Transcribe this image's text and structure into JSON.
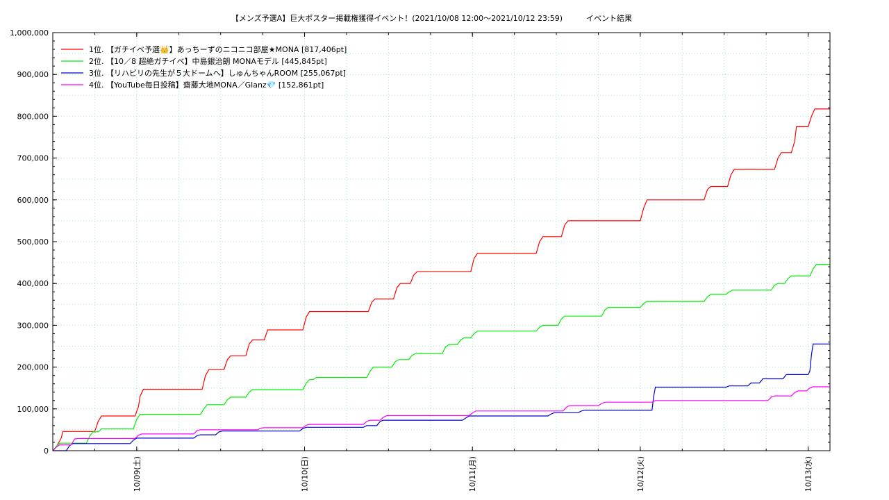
{
  "chart_data": {
    "type": "line",
    "title": "【メンズ予選A】巨大ポスター掲載権獲得イベント！(2021/10/08 12:00〜2021/10/12 23:59)",
    "subtitle": "イベント結果",
    "xlabel": "",
    "ylabel": "",
    "x_unit": "days_from_2021-10-08T00:00",
    "xlim": [
      0.5,
      5.13
    ],
    "ylim": [
      0,
      1000000
    ],
    "y_ticks": [
      0,
      100000,
      200000,
      300000,
      400000,
      500000,
      600000,
      700000,
      800000,
      900000,
      1000000
    ],
    "y_tick_labels": [
      "0",
      "100,000",
      "200,000",
      "300,000",
      "400,000",
      "500,000",
      "600,000",
      "700,000",
      "800,000",
      "900,000",
      "1,000,000"
    ],
    "x_ticks": [
      1,
      2,
      3,
      4,
      5
    ],
    "x_tick_labels": [
      "10/09(土)",
      "10/10(日)",
      "10/11(月)",
      "10/12(火)",
      "10/13(水)"
    ],
    "grid": true,
    "legend_position": "top-left",
    "series": [
      {
        "name": "1位. 【ガチイベ予選👑】あっちーずのニコニコ部屋★MONA [817,406pt]",
        "color": "#ff0000",
        "points": [
          [
            0.5,
            0
          ],
          [
            0.52,
            8000
          ],
          [
            0.53,
            16000
          ],
          [
            0.55,
            30000
          ],
          [
            0.56,
            46000
          ],
          [
            0.75,
            46000
          ],
          [
            0.77,
            70000
          ],
          [
            0.79,
            83000
          ],
          [
            0.99,
            83000
          ],
          [
            1.01,
            105000
          ],
          [
            1.02,
            130000
          ],
          [
            1.04,
            147000
          ],
          [
            1.39,
            147000
          ],
          [
            1.41,
            180000
          ],
          [
            1.43,
            194000
          ],
          [
            1.52,
            194000
          ],
          [
            1.54,
            218000
          ],
          [
            1.56,
            227000
          ],
          [
            1.65,
            227000
          ],
          [
            1.67,
            255000
          ],
          [
            1.69,
            265000
          ],
          [
            1.76,
            265000
          ],
          [
            1.78,
            289000
          ],
          [
            1.99,
            289000
          ],
          [
            2.01,
            320000
          ],
          [
            2.03,
            333000
          ],
          [
            2.38,
            333000
          ],
          [
            2.4,
            355000
          ],
          [
            2.42,
            363000
          ],
          [
            2.53,
            363000
          ],
          [
            2.55,
            390000
          ],
          [
            2.57,
            400000
          ],
          [
            2.63,
            400000
          ],
          [
            2.65,
            420000
          ],
          [
            2.67,
            428000
          ],
          [
            2.99,
            428000
          ],
          [
            3.01,
            460000
          ],
          [
            3.03,
            472000
          ],
          [
            3.38,
            472000
          ],
          [
            3.4,
            500000
          ],
          [
            3.42,
            512000
          ],
          [
            3.53,
            512000
          ],
          [
            3.55,
            540000
          ],
          [
            3.57,
            550000
          ],
          [
            4.0,
            550000
          ],
          [
            4.02,
            580000
          ],
          [
            4.04,
            600000
          ],
          [
            4.38,
            600000
          ],
          [
            4.4,
            625000
          ],
          [
            4.42,
            632000
          ],
          [
            4.52,
            632000
          ],
          [
            4.54,
            660000
          ],
          [
            4.56,
            673000
          ],
          [
            4.8,
            673000
          ],
          [
            4.82,
            700000
          ],
          [
            4.84,
            713000
          ],
          [
            4.9,
            713000
          ],
          [
            4.92,
            740000
          ],
          [
            4.93,
            775000
          ],
          [
            5.0,
            775000
          ],
          [
            5.02,
            800000
          ],
          [
            5.04,
            817406
          ],
          [
            5.13,
            817406
          ]
        ]
      },
      {
        "name": "2位. 【10／8 超絶ガチイベ】中島銀治朗 MONAモデル [445,845pt]",
        "color": "#00ee00",
        "points": [
          [
            0.5,
            0
          ],
          [
            0.52,
            10000
          ],
          [
            0.54,
            18000
          ],
          [
            0.7,
            18000
          ],
          [
            0.72,
            35000
          ],
          [
            0.74,
            45000
          ],
          [
            0.77,
            45000
          ],
          [
            0.79,
            52000
          ],
          [
            0.98,
            52000
          ],
          [
            1.0,
            75000
          ],
          [
            1.02,
            87000
          ],
          [
            1.38,
            87000
          ],
          [
            1.4,
            100000
          ],
          [
            1.42,
            110000
          ],
          [
            1.52,
            110000
          ],
          [
            1.54,
            122000
          ],
          [
            1.56,
            128000
          ],
          [
            1.65,
            128000
          ],
          [
            1.67,
            140000
          ],
          [
            1.69,
            146000
          ],
          [
            1.99,
            146000
          ],
          [
            2.01,
            162000
          ],
          [
            2.03,
            170000
          ],
          [
            2.05,
            170000
          ],
          [
            2.07,
            175000
          ],
          [
            2.37,
            175000
          ],
          [
            2.39,
            190000
          ],
          [
            2.41,
            200000
          ],
          [
            2.52,
            200000
          ],
          [
            2.54,
            213000
          ],
          [
            2.56,
            218000
          ],
          [
            2.62,
            218000
          ],
          [
            2.64,
            228000
          ],
          [
            2.66,
            232000
          ],
          [
            2.82,
            232000
          ],
          [
            2.84,
            248000
          ],
          [
            2.86,
            254000
          ],
          [
            2.91,
            254000
          ],
          [
            2.93,
            265000
          ],
          [
            2.95,
            270000
          ],
          [
            2.99,
            270000
          ],
          [
            3.01,
            280000
          ],
          [
            3.03,
            286000
          ],
          [
            3.38,
            286000
          ],
          [
            3.4,
            295000
          ],
          [
            3.42,
            300000
          ],
          [
            3.51,
            300000
          ],
          [
            3.53,
            315000
          ],
          [
            3.55,
            322000
          ],
          [
            3.77,
            322000
          ],
          [
            3.79,
            337000
          ],
          [
            3.81,
            343000
          ],
          [
            4.0,
            343000
          ],
          [
            4.02,
            352000
          ],
          [
            4.04,
            357000
          ],
          [
            4.38,
            357000
          ],
          [
            4.4,
            368000
          ],
          [
            4.42,
            374000
          ],
          [
            4.51,
            374000
          ],
          [
            4.53,
            380000
          ],
          [
            4.55,
            384000
          ],
          [
            4.78,
            384000
          ],
          [
            4.8,
            396000
          ],
          [
            4.82,
            400000
          ],
          [
            4.86,
            400000
          ],
          [
            4.88,
            412000
          ],
          [
            4.9,
            418000
          ],
          [
            5.01,
            418000
          ],
          [
            5.03,
            435000
          ],
          [
            5.05,
            445845
          ],
          [
            5.13,
            445845
          ]
        ]
      },
      {
        "name": "3位. 【リハビリの先生が５大ドームへ】しゅんちゃんROOM [255,067pt]",
        "color": "#0000cc",
        "points": [
          [
            0.5,
            0
          ],
          [
            0.58,
            0
          ],
          [
            0.6,
            12000
          ],
          [
            0.62,
            17000
          ],
          [
            0.96,
            17000
          ],
          [
            0.98,
            25000
          ],
          [
            1.0,
            30000
          ],
          [
            1.34,
            30000
          ],
          [
            1.36,
            36000
          ],
          [
            1.38,
            38000
          ],
          [
            1.47,
            38000
          ],
          [
            1.49,
            45000
          ],
          [
            1.51,
            47000
          ],
          [
            1.97,
            47000
          ],
          [
            1.99,
            53000
          ],
          [
            2.01,
            56000
          ],
          [
            2.35,
            56000
          ],
          [
            2.37,
            60000
          ],
          [
            2.43,
            60000
          ],
          [
            2.45,
            70000
          ],
          [
            2.47,
            73000
          ],
          [
            2.94,
            73000
          ],
          [
            2.96,
            78000
          ],
          [
            2.98,
            83000
          ],
          [
            3.45,
            83000
          ],
          [
            3.47,
            88000
          ],
          [
            3.49,
            91000
          ],
          [
            3.63,
            91000
          ],
          [
            3.65,
            95000
          ],
          [
            3.67,
            97000
          ],
          [
            4.07,
            97000
          ],
          [
            4.08,
            130000
          ],
          [
            4.09,
            152000
          ],
          [
            4.51,
            152000
          ],
          [
            4.53,
            155000
          ],
          [
            4.64,
            155000
          ],
          [
            4.66,
            162000
          ],
          [
            4.71,
            162000
          ],
          [
            4.73,
            172000
          ],
          [
            4.85,
            172000
          ],
          [
            4.87,
            182000
          ],
          [
            5.0,
            182000
          ],
          [
            5.01,
            190000
          ],
          [
            5.02,
            230000
          ],
          [
            5.03,
            255067
          ],
          [
            5.13,
            255067
          ]
        ]
      },
      {
        "name": "4位. 【YouTube毎日投稿】齋藤大地MONA／Glanz💎 [152,861pt]",
        "color": "#ff00ff",
        "points": [
          [
            0.5,
            0
          ],
          [
            0.52,
            8000
          ],
          [
            0.54,
            14000
          ],
          [
            0.61,
            14000
          ],
          [
            0.63,
            28000
          ],
          [
            0.65,
            29000
          ],
          [
            0.99,
            29000
          ],
          [
            1.01,
            37000
          ],
          [
            1.03,
            40000
          ],
          [
            1.34,
            40000
          ],
          [
            1.36,
            48000
          ],
          [
            1.38,
            50000
          ],
          [
            1.72,
            50000
          ],
          [
            1.74,
            54000
          ],
          [
            1.76,
            55000
          ],
          [
            1.99,
            55000
          ],
          [
            2.01,
            61000
          ],
          [
            2.03,
            63000
          ],
          [
            2.35,
            63000
          ],
          [
            2.37,
            70000
          ],
          [
            2.39,
            73000
          ],
          [
            2.45,
            73000
          ],
          [
            2.47,
            80000
          ],
          [
            2.49,
            84000
          ],
          [
            2.98,
            84000
          ],
          [
            3.0,
            90000
          ],
          [
            3.02,
            95000
          ],
          [
            3.54,
            95000
          ],
          [
            3.56,
            104000
          ],
          [
            3.58,
            108000
          ],
          [
            3.75,
            108000
          ],
          [
            3.77,
            113000
          ],
          [
            3.79,
            116000
          ],
          [
            4.07,
            116000
          ],
          [
            4.09,
            120000
          ],
          [
            4.76,
            120000
          ],
          [
            4.78,
            128000
          ],
          [
            4.8,
            131000
          ],
          [
            4.9,
            131000
          ],
          [
            4.92,
            139000
          ],
          [
            4.94,
            143000
          ],
          [
            4.99,
            143000
          ],
          [
            5.01,
            150000
          ],
          [
            5.03,
            152861
          ],
          [
            5.13,
            152861
          ]
        ]
      }
    ]
  }
}
